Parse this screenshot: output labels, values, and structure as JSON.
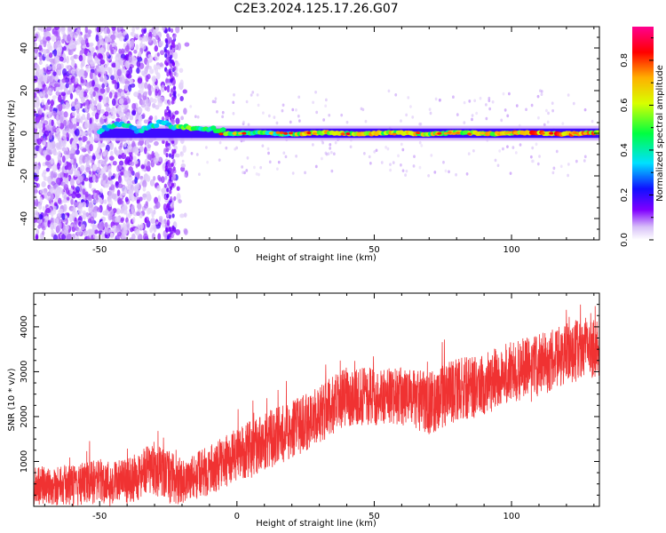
{
  "title": "C2E3.2024.125.17.26.G07",
  "chart_data": [
    {
      "type": "heatmap",
      "xlabel": "Height of straight line (km)",
      "ylabel": "Frequency (Hz)",
      "xlim": [
        -74,
        132
      ],
      "ylim": [
        -50,
        50
      ],
      "xticks": [
        -50,
        0,
        50,
        100
      ],
      "yticks": [
        -40,
        -20,
        0,
        20,
        40
      ],
      "colorbar": {
        "label": "Normalized spectral amplitude",
        "range": [
          0,
          0.95
        ],
        "ticks": [
          0.0,
          0.2,
          0.4,
          0.6,
          0.8
        ],
        "tick_labels": [
          "0.0",
          "0.2",
          "0.4",
          "0.6",
          "0.8"
        ],
        "colormap": "rainbow (white-violet-blue-cyan-green-yellow-orange-red-magenta)"
      },
      "features": {
        "carrier_line_hz": 0,
        "carrier_brightening_from_km": 20,
        "noise_region_below_km": -22
      }
    },
    {
      "type": "line",
      "xlabel": "Height of straight line (km)",
      "ylabel": "SNR (10 * v/v)",
      "xlim": [
        -74,
        132
      ],
      "ylim": [
        0,
        4750
      ],
      "xticks": [
        -50,
        0,
        50,
        100
      ],
      "yticks": [
        1000,
        2000,
        3000,
        4000
      ],
      "color": "#f03232",
      "trend_x": [
        -74,
        -60,
        -50,
        -40,
        -30,
        -25,
        -20,
        -10,
        0,
        10,
        20,
        30,
        40,
        50,
        60,
        70,
        80,
        90,
        100,
        110,
        120,
        132
      ],
      "trend_y": [
        450,
        480,
        550,
        550,
        850,
        650,
        550,
        800,
        1150,
        1450,
        1700,
        2050,
        2450,
        2450,
        2450,
        2300,
        2600,
        2700,
        3000,
        3150,
        3400,
        3600
      ],
      "noise_amp_y": [
        450,
        450,
        500,
        500,
        600,
        600,
        500,
        550,
        600,
        650,
        650,
        650,
        650,
        650,
        650,
        700,
        700,
        700,
        700,
        700,
        700,
        700
      ]
    }
  ]
}
